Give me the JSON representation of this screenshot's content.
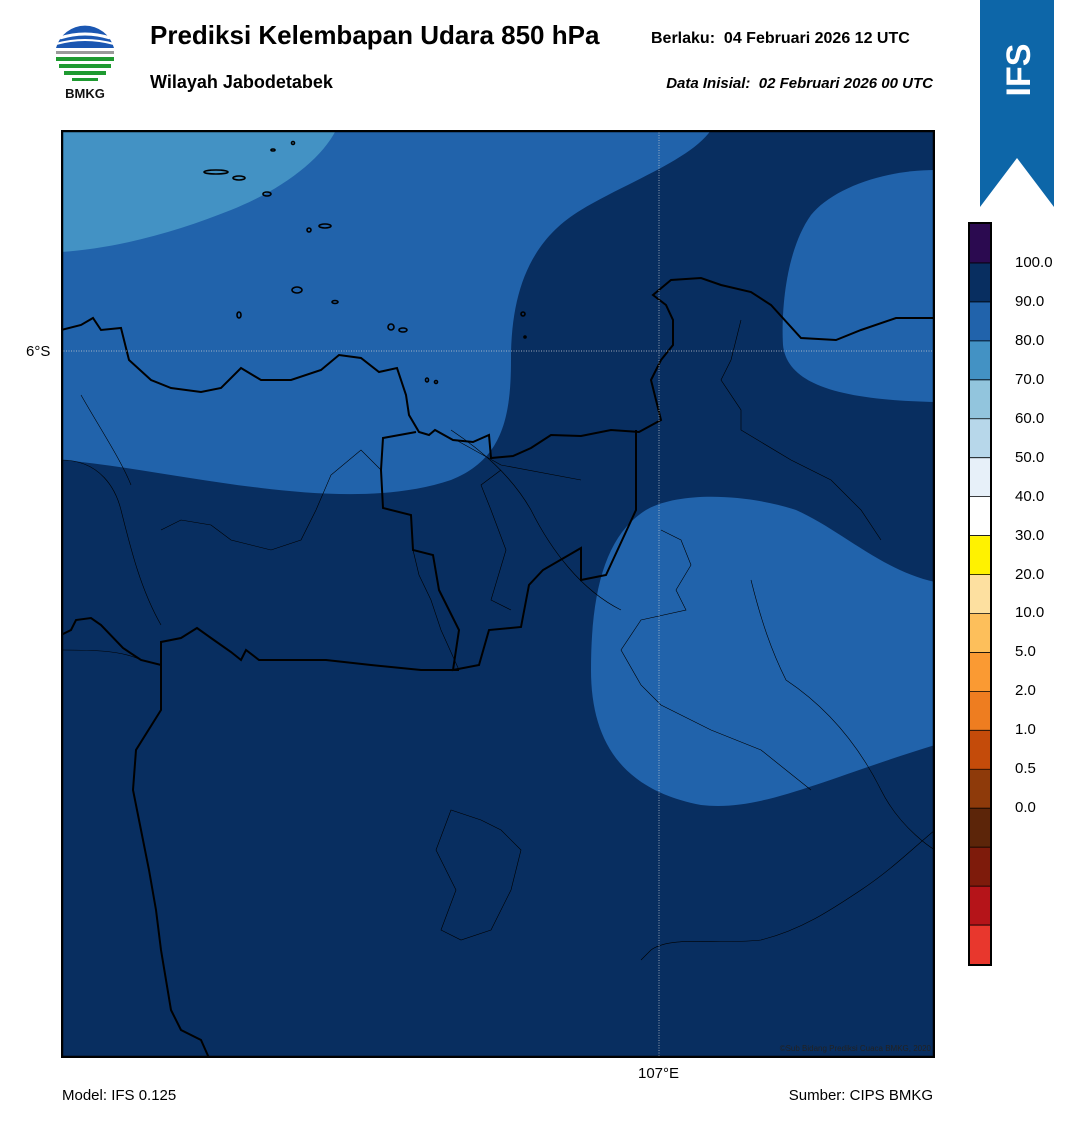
{
  "header": {
    "title": "Prediksi Kelembapan Udara 850 hPa",
    "subtitle": "Wilayah Jabodetabek",
    "valid_label": "Berlaku:",
    "valid_value": "04 Februari 2026 12 UTC",
    "init_label": "Data Inisial:",
    "init_value": "02 Februari 2026 00 UTC"
  },
  "logo": {
    "text": "BMKG",
    "icon": "bmkg-logo"
  },
  "banner": {
    "text": "IFS",
    "color": "#0d66a8"
  },
  "map": {
    "lat_label": "6°S",
    "lon_label": "107°E",
    "copyright": "©Sub Bidang Prediksi Cuaca BMKG, 2020",
    "colors": {
      "rh_90_100": "#082e60",
      "rh_80_90": "#2163ab",
      "rh_70_80": "#4392c4"
    }
  },
  "footer": {
    "model": "Model: IFS 0.125",
    "source": "Sumber: CIPS BMKG"
  },
  "colorbar": {
    "colors_bottom_to_top": [
      "#e8372d",
      "#b51419",
      "#7e1b0b",
      "#5c2509",
      "#8e3a0a",
      "#c44b0a",
      "#ee7d20",
      "#fa9a33",
      "#fdbf5b",
      "#fde0a0",
      "#fff200",
      "#ffffff",
      "#e7f0f9",
      "#b7d7ea",
      "#92c5dd",
      "#4392c4",
      "#2163ab",
      "#082e60",
      "#2b0a50"
    ],
    "labels": [
      "100.0",
      "90.0",
      "80.0",
      "70.0",
      "60.0",
      "50.0",
      "40.0",
      "30.0",
      "20.0",
      "10.0",
      "5.0",
      "2.0",
      "1.0",
      "0.5",
      "0.0"
    ]
  }
}
